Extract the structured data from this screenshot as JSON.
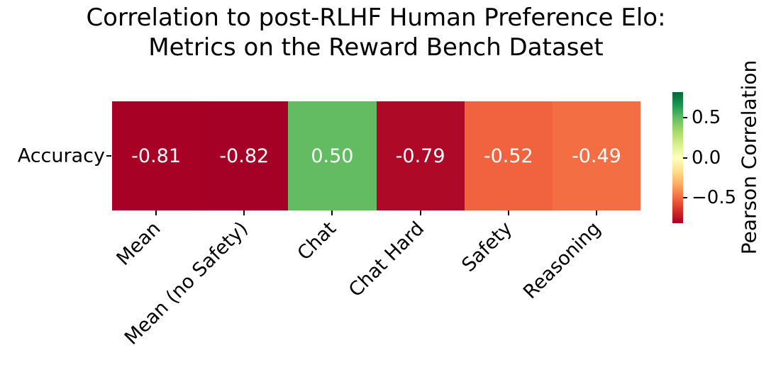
{
  "figure": {
    "title_line1": "Correlation to post-RLHF Human Preference Elo:",
    "title_line2": "Metrics on the Reward Bench Dataset"
  },
  "chart_data": {
    "type": "heatmap",
    "title": "Correlation to post-RLHF Human Preference Elo: Metrics on the Reward Bench Dataset",
    "rows": [
      "Accuracy"
    ],
    "columns": [
      "Mean",
      "Mean (no Safety)",
      "Chat",
      "Chat Hard",
      "Safety",
      "Reasoning"
    ],
    "values": [
      [
        -0.81,
        -0.82,
        0.5,
        -0.79,
        -0.52,
        -0.49
      ]
    ],
    "cell_labels": [
      "-0.81",
      "-0.82",
      "0.50",
      "-0.79",
      "-0.52",
      "-0.49"
    ],
    "cell_colors": [
      "#a70226",
      "#a50026",
      "#63bc62",
      "#ae0926",
      "#f0633e",
      "#f46e44"
    ],
    "cell_text_color": "#ffffff",
    "colormap": "RdYlGn",
    "vmin": -0.82,
    "vmax": 0.82,
    "grid": false,
    "colorbar": {
      "label": "Pearson Correlation",
      "ticks": [
        {
          "label": "0.5",
          "value": 0.5
        },
        {
          "label": "0.0",
          "value": 0.0
        },
        {
          "label": "−0.5",
          "value": -0.5
        }
      ],
      "gradient_stops_top_to_bottom": [
        "#006837",
        "#1a9850",
        "#66bd63",
        "#a6d96a",
        "#d9ef8b",
        "#ffffbf",
        "#fee08b",
        "#fdae61",
        "#f46d43",
        "#d73027",
        "#a50026"
      ]
    }
  }
}
